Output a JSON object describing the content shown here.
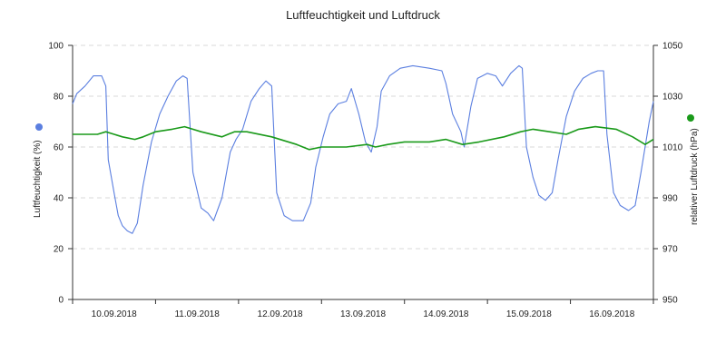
{
  "chart_data": {
    "type": "line",
    "title": "Luftfeuchtigkeit und Luftdruck",
    "x_categories": [
      "10.09.2018",
      "11.09.2018",
      "12.09.2018",
      "13.09.2018",
      "14.09.2018",
      "15.09.2018",
      "16.09.2018"
    ],
    "x_range": [
      0,
      7
    ],
    "left_axis": {
      "label": "Luftfeuchtigkeit (%)",
      "range": [
        0,
        100
      ],
      "ticks": [
        "0",
        "20",
        "40",
        "60",
        "80",
        "100"
      ],
      "color": "#5b7fe0"
    },
    "right_axis": {
      "label": "relativer Luftdruck (hPa)",
      "range": [
        950,
        1050
      ],
      "ticks": [
        "950",
        "970",
        "990",
        "1010",
        "1030",
        "1050"
      ],
      "color": "#1a9a1a"
    },
    "grid": true,
    "series": [
      {
        "axis": "left",
        "color": "#5b7fe0",
        "points": [
          [
            0.0,
            77
          ],
          [
            0.05,
            81
          ],
          [
            0.15,
            84
          ],
          [
            0.25,
            88
          ],
          [
            0.35,
            88
          ],
          [
            0.4,
            84
          ],
          [
            0.43,
            55
          ],
          [
            0.5,
            42
          ],
          [
            0.55,
            33
          ],
          [
            0.6,
            29
          ],
          [
            0.66,
            27
          ],
          [
            0.72,
            26
          ],
          [
            0.78,
            30
          ],
          [
            0.85,
            45
          ],
          [
            0.95,
            62
          ],
          [
            1.05,
            73
          ],
          [
            1.15,
            80
          ],
          [
            1.25,
            86
          ],
          [
            1.33,
            88
          ],
          [
            1.38,
            87
          ],
          [
            1.45,
            50
          ],
          [
            1.55,
            36
          ],
          [
            1.63,
            34
          ],
          [
            1.7,
            31
          ],
          [
            1.8,
            40
          ],
          [
            1.9,
            58
          ],
          [
            1.97,
            63
          ],
          [
            2.05,
            67
          ],
          [
            2.15,
            78
          ],
          [
            2.25,
            83
          ],
          [
            2.33,
            86
          ],
          [
            2.4,
            84
          ],
          [
            2.46,
            42
          ],
          [
            2.55,
            33
          ],
          [
            2.65,
            31
          ],
          [
            2.78,
            31
          ],
          [
            2.87,
            38
          ],
          [
            2.93,
            52
          ],
          [
            3.02,
            64
          ],
          [
            3.1,
            73
          ],
          [
            3.2,
            77
          ],
          [
            3.3,
            78
          ],
          [
            3.36,
            83
          ],
          [
            3.45,
            73
          ],
          [
            3.53,
            62
          ],
          [
            3.6,
            58
          ],
          [
            3.67,
            68
          ],
          [
            3.72,
            82
          ],
          [
            3.82,
            88
          ],
          [
            3.95,
            91
          ],
          [
            4.1,
            92
          ],
          [
            4.3,
            91
          ],
          [
            4.45,
            90
          ],
          [
            4.5,
            85
          ],
          [
            4.58,
            73
          ],
          [
            4.68,
            66
          ],
          [
            4.72,
            60
          ],
          [
            4.8,
            76
          ],
          [
            4.88,
            87
          ],
          [
            5.0,
            89
          ],
          [
            5.1,
            88
          ],
          [
            5.18,
            84
          ],
          [
            5.28,
            89
          ],
          [
            5.38,
            92
          ],
          [
            5.42,
            91
          ],
          [
            5.47,
            60
          ],
          [
            5.55,
            48
          ],
          [
            5.62,
            41
          ],
          [
            5.7,
            39
          ],
          [
            5.78,
            42
          ],
          [
            5.85,
            55
          ],
          [
            5.95,
            72
          ],
          [
            6.05,
            82
          ],
          [
            6.15,
            87
          ],
          [
            6.25,
            89
          ],
          [
            6.33,
            90
          ],
          [
            6.4,
            90
          ],
          [
            6.44,
            65
          ],
          [
            6.52,
            42
          ],
          [
            6.6,
            37
          ],
          [
            6.7,
            35
          ],
          [
            6.78,
            37
          ],
          [
            6.85,
            50
          ],
          [
            6.95,
            70
          ],
          [
            7.0,
            78
          ]
        ]
      },
      {
        "axis": "right",
        "color": "#1a9a1a",
        "points": [
          [
            0.0,
            1015
          ],
          [
            0.3,
            1015
          ],
          [
            0.4,
            1016
          ],
          [
            0.6,
            1014
          ],
          [
            0.75,
            1013
          ],
          [
            0.85,
            1014
          ],
          [
            1.0,
            1016
          ],
          [
            1.2,
            1017
          ],
          [
            1.35,
            1018
          ],
          [
            1.55,
            1016
          ],
          [
            1.8,
            1014
          ],
          [
            1.95,
            1016
          ],
          [
            2.1,
            1016
          ],
          [
            2.4,
            1014
          ],
          [
            2.7,
            1011
          ],
          [
            2.85,
            1009
          ],
          [
            3.0,
            1010
          ],
          [
            3.3,
            1010
          ],
          [
            3.55,
            1011
          ],
          [
            3.65,
            1010
          ],
          [
            3.8,
            1011
          ],
          [
            4.0,
            1012
          ],
          [
            4.3,
            1012
          ],
          [
            4.5,
            1013
          ],
          [
            4.7,
            1011
          ],
          [
            4.9,
            1012
          ],
          [
            5.2,
            1014
          ],
          [
            5.4,
            1016
          ],
          [
            5.55,
            1017
          ],
          [
            5.75,
            1016
          ],
          [
            5.95,
            1015
          ],
          [
            6.1,
            1017
          ],
          [
            6.3,
            1018
          ],
          [
            6.55,
            1017
          ],
          [
            6.75,
            1014
          ],
          [
            6.9,
            1011
          ],
          [
            7.0,
            1013
          ]
        ]
      }
    ]
  }
}
